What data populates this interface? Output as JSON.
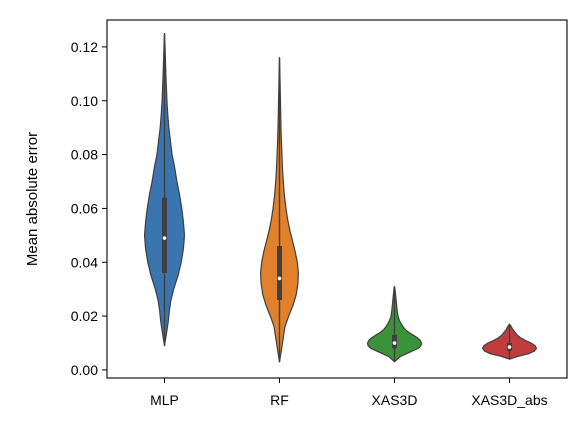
{
  "chart_data": {
    "type": "violin",
    "title": "",
    "xlabel": "",
    "ylabel": "Mean absolute error",
    "ylim": [
      -0.003,
      0.13
    ],
    "yticks": [
      0.0,
      0.02,
      0.04,
      0.06,
      0.08,
      0.1,
      0.12
    ],
    "ytick_labels": [
      "0.00",
      "0.02",
      "0.04",
      "0.06",
      "0.08",
      "0.10",
      "0.12"
    ],
    "categories": [
      "MLP",
      "RF",
      "XAS3D",
      "XAS3D_abs"
    ],
    "grid": false,
    "legend": "none",
    "series": [
      {
        "category": "MLP",
        "color": "#3a75b0",
        "min": 0.009,
        "max": 0.125,
        "q1": 0.036,
        "median": 0.049,
        "q3": 0.064,
        "density": [
          [
            0.009,
            0.0
          ],
          [
            0.014,
            0.08
          ],
          [
            0.018,
            0.14
          ],
          [
            0.022,
            0.18
          ],
          [
            0.026,
            0.24
          ],
          [
            0.03,
            0.34
          ],
          [
            0.035,
            0.5
          ],
          [
            0.04,
            0.62
          ],
          [
            0.045,
            0.7
          ],
          [
            0.05,
            0.74
          ],
          [
            0.055,
            0.7
          ],
          [
            0.06,
            0.64
          ],
          [
            0.065,
            0.56
          ],
          [
            0.07,
            0.46
          ],
          [
            0.075,
            0.38
          ],
          [
            0.08,
            0.28
          ],
          [
            0.085,
            0.22
          ],
          [
            0.09,
            0.16
          ],
          [
            0.095,
            0.12
          ],
          [
            0.1,
            0.09
          ],
          [
            0.105,
            0.07
          ],
          [
            0.11,
            0.05
          ],
          [
            0.115,
            0.035
          ],
          [
            0.12,
            0.02
          ],
          [
            0.125,
            0.0
          ]
        ]
      },
      {
        "category": "RF",
        "color": "#e1812c",
        "min": 0.003,
        "max": 0.116,
        "q1": 0.026,
        "median": 0.034,
        "q3": 0.046,
        "density": [
          [
            0.003,
            0.0
          ],
          [
            0.008,
            0.08
          ],
          [
            0.012,
            0.14
          ],
          [
            0.016,
            0.2
          ],
          [
            0.02,
            0.34
          ],
          [
            0.024,
            0.5
          ],
          [
            0.028,
            0.62
          ],
          [
            0.032,
            0.68
          ],
          [
            0.036,
            0.7
          ],
          [
            0.04,
            0.66
          ],
          [
            0.044,
            0.58
          ],
          [
            0.048,
            0.48
          ],
          [
            0.052,
            0.38
          ],
          [
            0.056,
            0.3
          ],
          [
            0.06,
            0.24
          ],
          [
            0.065,
            0.18
          ],
          [
            0.07,
            0.14
          ],
          [
            0.075,
            0.11
          ],
          [
            0.08,
            0.09
          ],
          [
            0.085,
            0.07
          ],
          [
            0.09,
            0.055
          ],
          [
            0.095,
            0.045
          ],
          [
            0.1,
            0.035
          ],
          [
            0.105,
            0.025
          ],
          [
            0.11,
            0.015
          ],
          [
            0.116,
            0.0
          ]
        ]
      },
      {
        "category": "XAS3D",
        "color": "#3a923a",
        "min": 0.003,
        "max": 0.031,
        "q1": 0.008,
        "median": 0.01,
        "q3": 0.013,
        "density": [
          [
            0.003,
            0.0
          ],
          [
            0.005,
            0.22
          ],
          [
            0.007,
            0.66
          ],
          [
            0.008,
            0.88
          ],
          [
            0.009,
            0.98
          ],
          [
            0.01,
            1.0
          ],
          [
            0.011,
            0.95
          ],
          [
            0.012,
            0.84
          ],
          [
            0.013,
            0.68
          ],
          [
            0.014,
            0.52
          ],
          [
            0.015,
            0.4
          ],
          [
            0.016,
            0.32
          ],
          [
            0.017,
            0.26
          ],
          [
            0.018,
            0.2
          ],
          [
            0.019,
            0.16
          ],
          [
            0.02,
            0.13
          ],
          [
            0.022,
            0.1
          ],
          [
            0.024,
            0.08
          ],
          [
            0.026,
            0.06
          ],
          [
            0.028,
            0.04
          ],
          [
            0.03,
            0.02
          ],
          [
            0.031,
            0.0
          ]
        ]
      },
      {
        "category": "XAS3D_abs",
        "color": "#c03d3e",
        "min": 0.004,
        "max": 0.017,
        "q1": 0.007,
        "median": 0.0085,
        "q3": 0.01,
        "density": [
          [
            0.004,
            0.0
          ],
          [
            0.005,
            0.3
          ],
          [
            0.006,
            0.7
          ],
          [
            0.007,
            0.92
          ],
          [
            0.008,
            1.0
          ],
          [
            0.009,
            0.95
          ],
          [
            0.01,
            0.8
          ],
          [
            0.011,
            0.58
          ],
          [
            0.012,
            0.4
          ],
          [
            0.013,
            0.28
          ],
          [
            0.014,
            0.2
          ],
          [
            0.015,
            0.12
          ],
          [
            0.016,
            0.07
          ],
          [
            0.017,
            0.0
          ]
        ]
      }
    ]
  }
}
